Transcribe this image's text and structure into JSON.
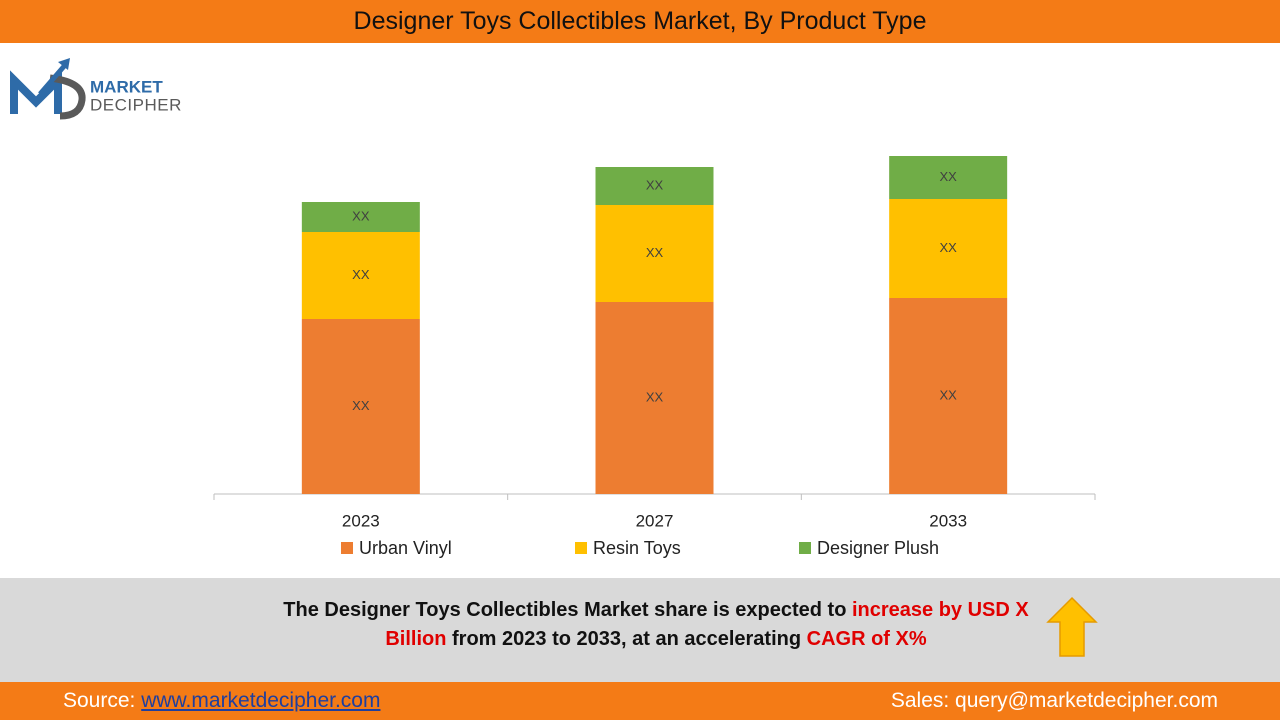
{
  "chart_data": {
    "type": "bar",
    "stacked": true,
    "title": "Designer Toys Collectibles Market, By Product Type",
    "categories": [
      "2023",
      "2027",
      "2033"
    ],
    "series": [
      {
        "name": "Urban Vinyl",
        "color": "#ED7D31",
        "values": [
          175,
          192,
          196
        ],
        "value_labels": [
          "XX",
          "XX",
          "XX"
        ]
      },
      {
        "name": "Resin Toys",
        "color": "#FFC000",
        "values": [
          87,
          97,
          99
        ],
        "value_labels": [
          "XX",
          "XX",
          "XX"
        ]
      },
      {
        "name": "Designer Plush",
        "color": "#70AD47",
        "values": [
          30,
          38,
          43
        ],
        "value_labels": [
          "XX",
          "XX",
          "XX"
        ]
      }
    ],
    "legend": "bottom"
  },
  "logo": {
    "line1": "MARKET",
    "line2": "DECIPHER"
  },
  "summary": {
    "parts": [
      {
        "text": "The Designer Toys Collectibles Market share is expected to ",
        "highlight": false
      },
      {
        "text": "increase by USD X Billion",
        "highlight": true
      },
      {
        "text": " from 2023 to 2033, at an accelerating ",
        "highlight": false
      },
      {
        "text": "CAGR of X%",
        "highlight": true
      }
    ]
  },
  "footer": {
    "source_label": "Source:",
    "source_url": "www.marketdecipher.com",
    "sales": "Sales: query@marketdecipher.com"
  }
}
